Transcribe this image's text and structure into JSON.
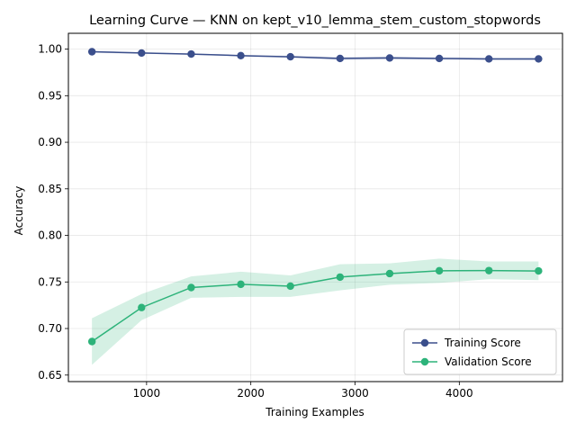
{
  "chart_data": {
    "type": "line",
    "title": "Learning Curve — KNN on kept_v10_lemma_stem_custom_stopwords",
    "xlabel": "Training Examples",
    "ylabel": "Accuracy",
    "xlim": [
      250,
      4990
    ],
    "ylim": [
      0.643,
      1.017
    ],
    "xticks": [
      1000,
      2000,
      3000,
      4000
    ],
    "yticks": [
      0.65,
      0.7,
      0.75,
      0.8,
      0.85,
      0.9,
      0.95,
      1.0
    ],
    "ytick_labels": [
      "0.65",
      "0.70",
      "0.75",
      "0.80",
      "0.85",
      "0.90",
      "0.95",
      "1.00"
    ],
    "grid": true,
    "legend_position": "lower-right",
    "x": [
      476,
      952,
      1428,
      1904,
      2380,
      2856,
      3332,
      3808,
      4284,
      4760
    ],
    "series": [
      {
        "name": "Training Score",
        "color": "#3b4f8c",
        "values": [
          0.9972,
          0.9958,
          0.9947,
          0.993,
          0.9918,
          0.99,
          0.9905,
          0.99,
          0.9895,
          0.9895
        ],
        "band_low": [
          0.9962,
          0.995,
          0.994,
          0.9922,
          0.9908,
          0.9885,
          0.989,
          0.9888,
          0.9883,
          0.9883
        ],
        "band_high": [
          0.9982,
          0.9966,
          0.9954,
          0.9938,
          0.9928,
          0.9915,
          0.992,
          0.9912,
          0.9907,
          0.9907
        ]
      },
      {
        "name": "Validation Score",
        "color": "#2db37a",
        "values": [
          0.686,
          0.7225,
          0.744,
          0.7475,
          0.7455,
          0.7552,
          0.759,
          0.762,
          0.7622,
          0.7618
        ],
        "band_low": [
          0.661,
          0.709,
          0.733,
          0.734,
          0.734,
          0.741,
          0.747,
          0.749,
          0.753,
          0.752
        ],
        "band_high": [
          0.711,
          0.737,
          0.756,
          0.761,
          0.757,
          0.769,
          0.77,
          0.775,
          0.772,
          0.772
        ]
      }
    ]
  }
}
